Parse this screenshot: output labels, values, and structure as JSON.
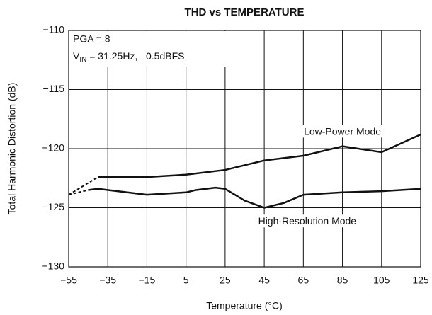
{
  "chart_data": {
    "type": "line",
    "title": "THD vs TEMPERATURE",
    "x_label": "Temperature (°C)",
    "y_label": "Total Harmonic Distortion (dB)",
    "xlim": [
      -55,
      125
    ],
    "ylim": [
      -130,
      -110
    ],
    "xticks": [
      {
        "value": -55,
        "label": "−55"
      },
      {
        "value": -35,
        "label": "−35"
      },
      {
        "value": -15,
        "label": "−15"
      },
      5,
      25,
      45,
      65,
      85,
      105,
      125
    ],
    "yticks": [
      {
        "value": -130,
        "label": "−130"
      },
      {
        "value": -125,
        "label": "−125"
      },
      {
        "value": -120,
        "label": "−120"
      },
      {
        "value": -115,
        "label": "−115"
      },
      {
        "value": -110,
        "label": "−110"
      }
    ],
    "grid": true,
    "conditions": {
      "line1": "PGA = 8",
      "line2": {
        "symbol": "V",
        "sub": "IN",
        "rest": " = 31.25Hz, –0.5dBFS"
      }
    },
    "annotations": [
      {
        "text": "Low-Power Mode",
        "x": 85,
        "y": -118.6
      },
      {
        "text": "High-Resolution Mode",
        "x": 67,
        "y": -126.2
      }
    ],
    "series": [
      {
        "color": "#111111",
        "style": "dashed",
        "x": [
          -55,
          -40
        ],
        "values": [
          -123.9,
          -122.4
        ]
      },
      {
        "color": "#111111",
        "style": "solid",
        "x": [
          -40,
          -15,
          5,
          25,
          45,
          65,
          85,
          105,
          125
        ],
        "values": [
          -122.4,
          -122.4,
          -122.2,
          -121.8,
          -121.0,
          -120.6,
          -119.8,
          -120.3,
          -118.8
        ]
      },
      {
        "color": "#111111",
        "style": "dashed",
        "x": [
          -55,
          -45
        ],
        "values": [
          -123.9,
          -123.5
        ]
      },
      {
        "color": "#111111",
        "style": "solid",
        "x": [
          -45,
          -40,
          -15,
          5,
          10,
          20,
          25,
          35,
          45,
          55,
          65,
          85,
          105,
          125
        ],
        "values": [
          -123.5,
          -123.4,
          -123.9,
          -123.7,
          -123.5,
          -123.3,
          -123.4,
          -124.4,
          -125.0,
          -124.6,
          -123.9,
          -123.7,
          -123.6,
          -123.4
        ]
      }
    ]
  }
}
